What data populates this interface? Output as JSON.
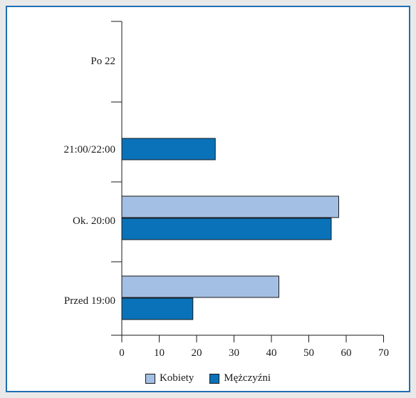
{
  "chart_data": {
    "type": "bar",
    "orientation": "horizontal",
    "categories": [
      "Po 22",
      "21:00/22:00",
      "Ok. 20:00",
      "Przed 19:00"
    ],
    "series": [
      {
        "name": "Kobiety",
        "color": "#a4bfe4",
        "values": [
          0,
          0,
          58,
          42
        ]
      },
      {
        "name": "Mężczyźni",
        "color": "#0a72b8",
        "values": [
          0,
          25,
          56,
          19
        ]
      }
    ],
    "xlim": [
      0,
      70
    ],
    "xticks": [
      0,
      10,
      20,
      30,
      40,
      50,
      60,
      70
    ],
    "legend_position": "bottom",
    "grid": false
  }
}
